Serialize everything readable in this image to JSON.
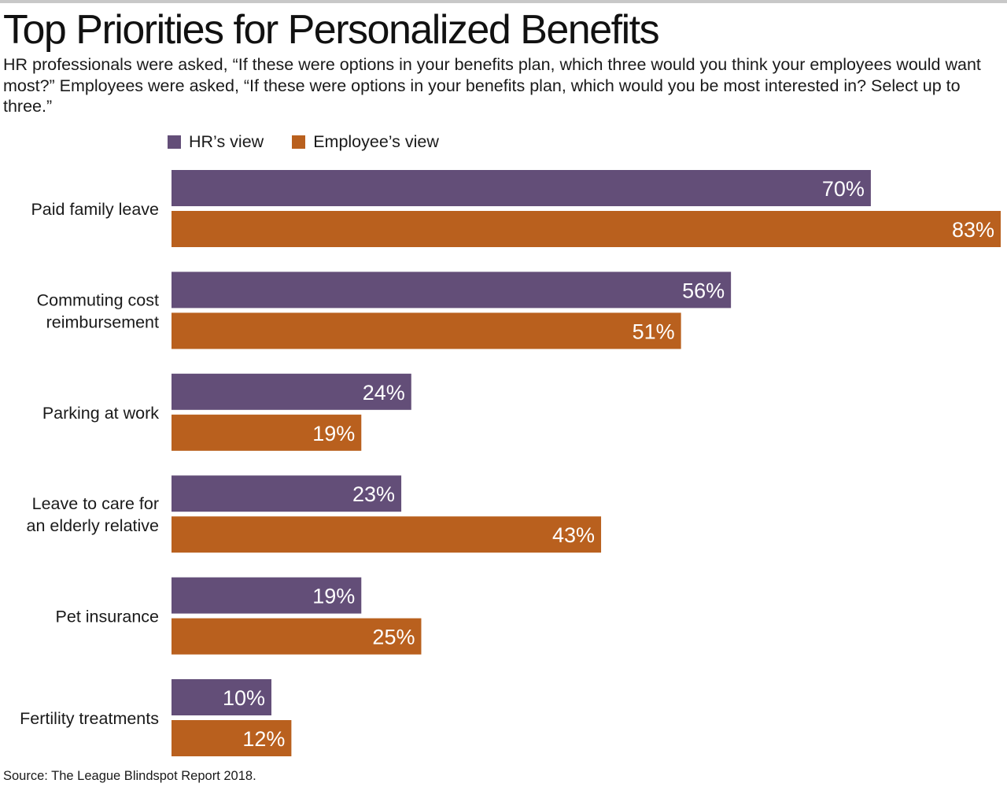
{
  "title": "Top Priorities for Personalized Benefits",
  "subtitle": "HR professionals were asked, “If these were options in your benefits plan, which three would you think your employees would want most?” Employees were asked, “If these were options in your benefits plan, which would you be most interested in? Select up to three.”",
  "source": "Source: The League Blindspot Report 2018.",
  "colors": {
    "hr": "#634e78",
    "employee": "#b9601e"
  },
  "chart_data": {
    "type": "bar",
    "orientation": "horizontal",
    "categories": [
      "Paid family leave",
      "Commuting cost reimbursement",
      "Parking at work",
      "Leave to care for an elderly relative",
      "Pet insurance",
      "Fertility treatments"
    ],
    "category_lines": [
      [
        "Paid family leave"
      ],
      [
        "Commuting cost",
        "reimbursement"
      ],
      [
        "Parking at work"
      ],
      [
        "Leave to care for",
        "an elderly relative"
      ],
      [
        "Pet insurance"
      ],
      [
        "Fertility treatments"
      ]
    ],
    "series": [
      {
        "name": "HR’s view",
        "values": [
          70,
          56,
          24,
          23,
          19,
          10
        ],
        "labels": [
          "70%",
          "56%",
          "24%",
          "23%",
          "19%",
          "10%"
        ]
      },
      {
        "name": "Employee’s view",
        "values": [
          83,
          51,
          19,
          43,
          25,
          12
        ],
        "labels": [
          "83%",
          "51%",
          "19%",
          "43%",
          "25%",
          "12%"
        ]
      }
    ],
    "legend_position": "top",
    "grid": false,
    "xlim": [
      0,
      83
    ]
  }
}
